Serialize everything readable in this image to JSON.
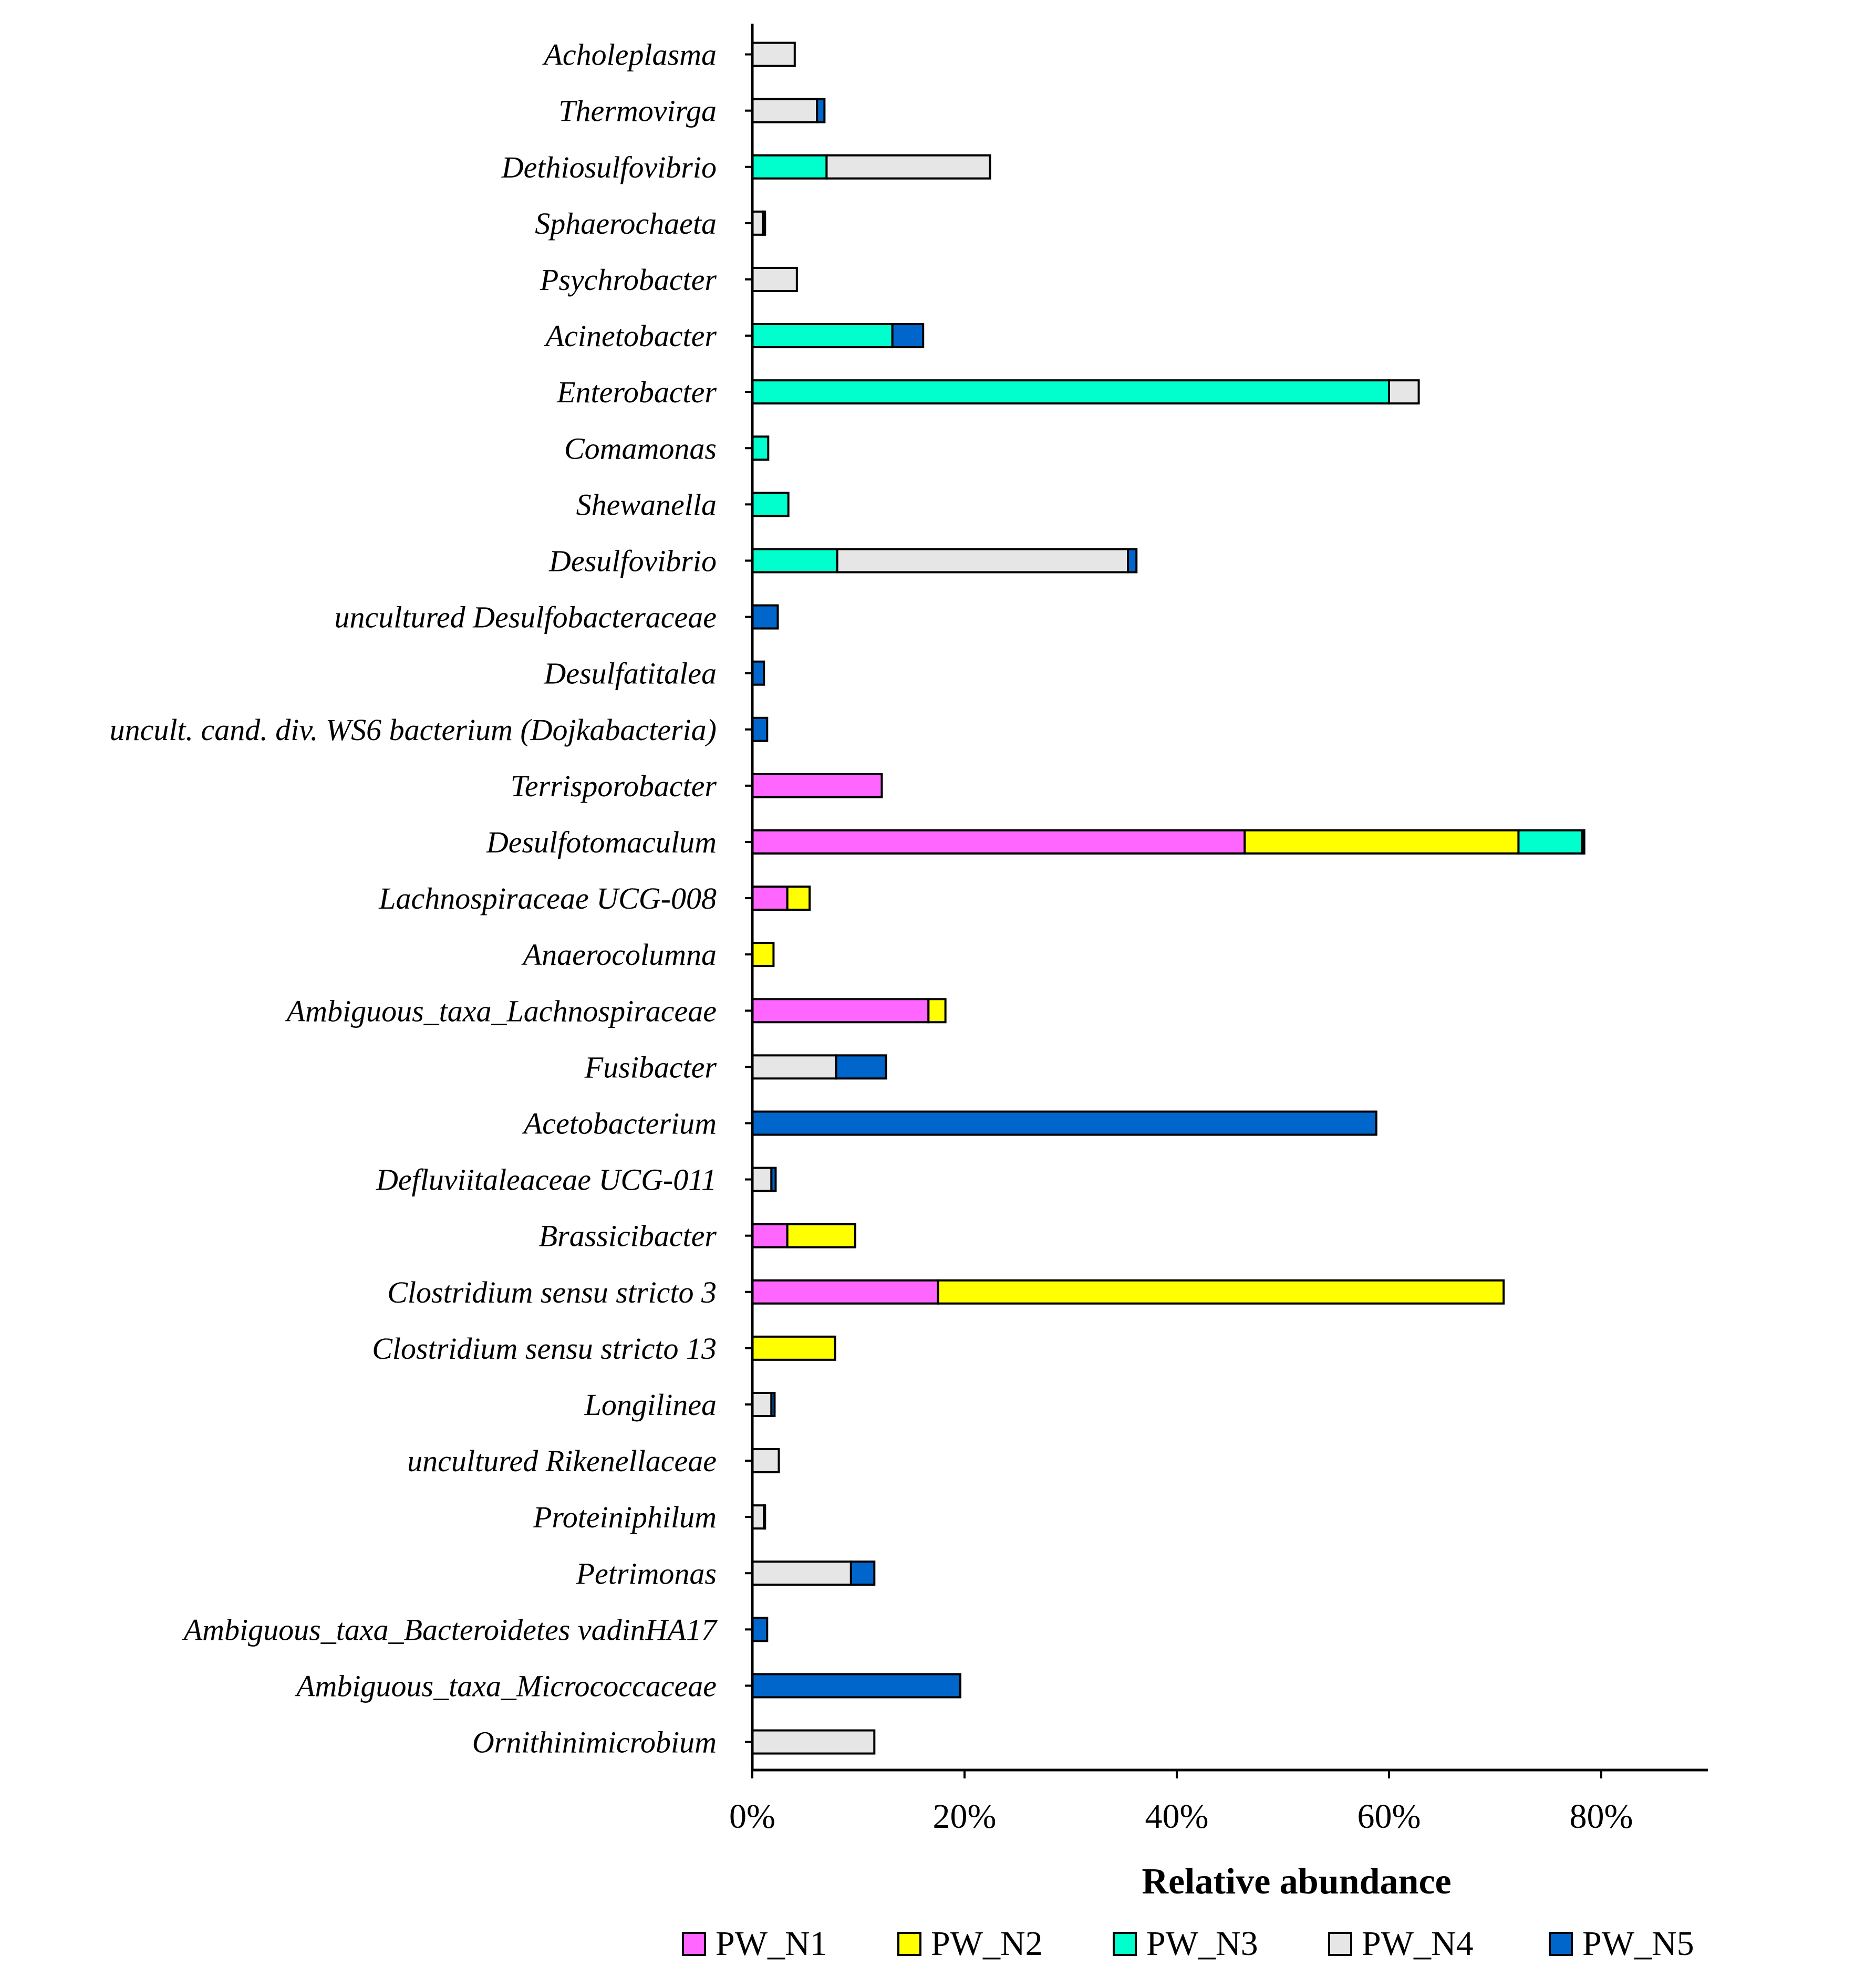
{
  "chart_data": {
    "type": "bar",
    "orientation": "horizontal",
    "stacked": true,
    "title": "",
    "xlabel": "Relative abundance",
    "ylabel": "",
    "xlim": [
      0,
      90
    ],
    "xticks": [
      0,
      20,
      40,
      60,
      80
    ],
    "xtick_labels": [
      "0%",
      "20%",
      "40%",
      "60%",
      "80%"
    ],
    "legend_position": "bottom",
    "categories": [
      "Acholeplasma",
      "Thermovirga",
      "Dethiosulfovibrio",
      "Sphaerochaeta",
      "Psychrobacter",
      "Acinetobacter",
      "Enterobacter",
      "Comamonas",
      "Shewanella",
      "Desulfovibrio",
      "uncultured Desulfobacteraceae",
      "Desulfatitalea",
      "uncult. cand. div. WS6 bacterium (Dojkabacteria)",
      "Terrisporobacter",
      "Desulfotomaculum",
      "Lachnospiraceae UCG-008",
      "Anaerocolumna",
      "Ambiguous_taxa_Lachnospiraceae",
      "Fusibacter",
      "Acetobacterium",
      "Defluviitaleaceae UCG-011",
      "Brassicibacter",
      "Clostridium sensu stricto 3",
      "Clostridium sensu stricto 13",
      "Longilinea",
      "uncultured Rikenellaceae",
      "Proteiniphilum",
      "Petrimonas",
      "Ambiguous_taxa_Bacteroidetes vadinHA17",
      "Ambiguous_taxa_Micrococcaceae",
      "Ornithinimicrobium"
    ],
    "series": [
      {
        "name": "PW_N1",
        "color": "#ff66ff",
        "values": [
          0,
          0,
          0,
          0,
          0,
          0,
          0,
          0,
          0,
          0,
          0,
          0,
          0,
          12.2,
          46.4,
          3.3,
          0,
          16.6,
          0,
          0,
          0,
          3.3,
          17.5,
          0,
          0,
          0,
          0,
          0,
          0,
          0,
          0
        ]
      },
      {
        "name": "PW_N2",
        "color": "#ffff00",
        "values": [
          0,
          0,
          0,
          0,
          0,
          0,
          0,
          0,
          0,
          0,
          0,
          0,
          0,
          0,
          25.8,
          2.1,
          2.0,
          1.6,
          0,
          0,
          0,
          6.4,
          53.3,
          7.8,
          0,
          0,
          0,
          0,
          0,
          0,
          0
        ]
      },
      {
        "name": "PW_N3",
        "color": "#00ffcc",
        "values": [
          0,
          0,
          7.0,
          0,
          0,
          13.2,
          60.0,
          1.5,
          3.4,
          8.0,
          0,
          0,
          0,
          0,
          6.0,
          0,
          0,
          0,
          0,
          0,
          0,
          0,
          0,
          0,
          0,
          0,
          0,
          0,
          0,
          0,
          0
        ]
      },
      {
        "name": "PW_N4",
        "color": "#e6e6e6",
        "values": [
          4.0,
          6.1,
          15.4,
          1.0,
          4.2,
          0,
          2.8,
          0,
          0,
          27.4,
          0,
          0,
          0,
          0,
          0,
          0,
          0,
          0,
          7.9,
          0,
          1.8,
          0,
          0,
          0,
          1.8,
          2.5,
          1.1,
          9.3,
          0,
          0,
          11.5
        ]
      },
      {
        "name": "PW_N5",
        "color": "#0066cc",
        "values": [
          0,
          0.7,
          0,
          0.2,
          0,
          2.9,
          0,
          0,
          0,
          0.8,
          2.4,
          1.1,
          1.4,
          0,
          0.2,
          0,
          0,
          0,
          4.7,
          58.8,
          0.4,
          0,
          0,
          0,
          0.3,
          0,
          0.1,
          2.2,
          1.4,
          19.6,
          0
        ]
      }
    ]
  }
}
